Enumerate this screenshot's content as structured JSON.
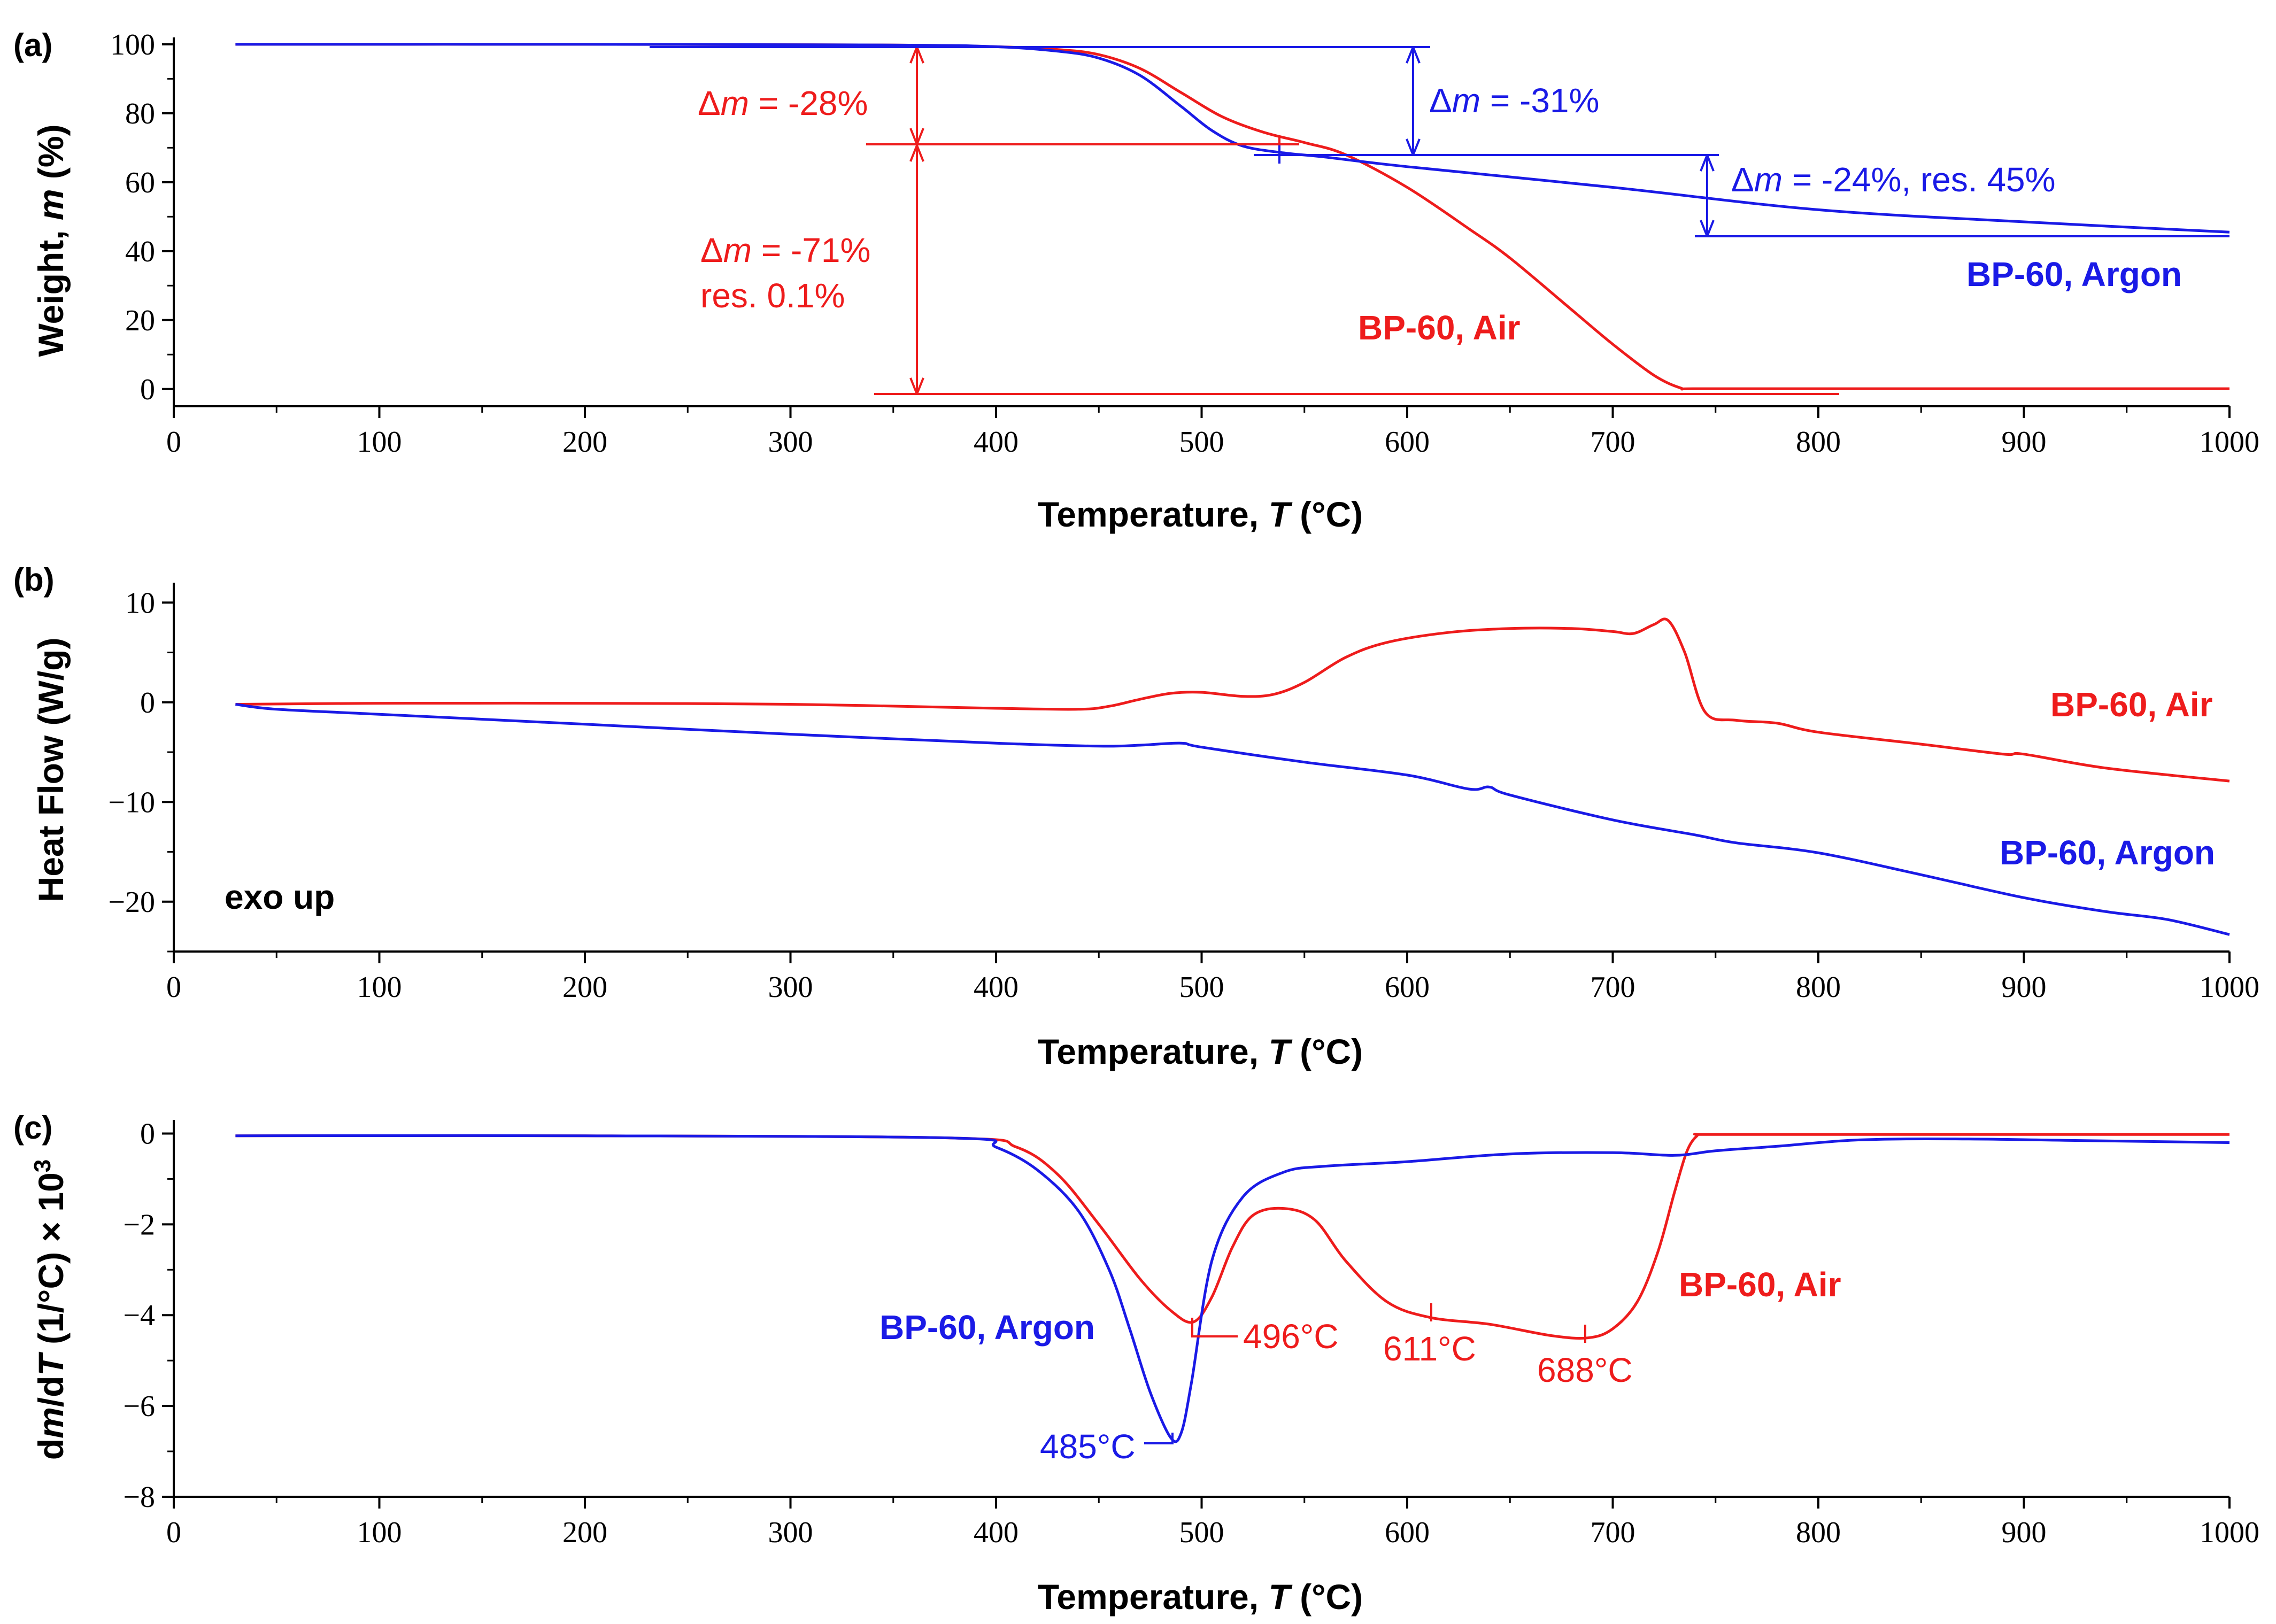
{
  "colors": {
    "air": "#ee1c1c",
    "argon": "#1a1ae6",
    "axis": "#000000"
  },
  "chart_data": [
    {
      "type": "line",
      "panel": "(a)",
      "xlabel": "Temperature, T (°C)",
      "ylabel": "Weight, m (%)",
      "xlim": [
        0,
        1000
      ],
      "ylim": [
        -5,
        102
      ],
      "xticks": [
        0,
        100,
        200,
        300,
        400,
        500,
        600,
        700,
        800,
        900,
        1000
      ],
      "yticks": [
        0,
        20,
        40,
        60,
        80,
        100
      ],
      "grid": false,
      "series": [
        {
          "name": "BP-60, Air",
          "color": "#ee1c1c",
          "x": [
            30,
            200,
            350,
            400,
            430,
            450,
            470,
            490,
            510,
            530,
            550,
            570,
            600,
            630,
            650,
            680,
            700,
            720,
            733,
            740,
            800,
            900,
            1000
          ],
          "y": [
            100,
            100,
            99.8,
            99.3,
            98.5,
            97,
            93,
            86,
            79,
            74.5,
            71.5,
            68,
            58.5,
            46.5,
            38,
            23,
            13,
            4,
            0.3,
            0.1,
            0.1,
            0.1,
            0.1
          ]
        },
        {
          "name": "BP-60, Argon",
          "color": "#1a1ae6",
          "x": [
            30,
            200,
            350,
            400,
            430,
            450,
            470,
            490,
            505,
            520,
            540,
            560,
            600,
            700,
            800,
            900,
            1000
          ],
          "y": [
            100,
            100,
            99.8,
            99.3,
            98,
            96,
            91,
            82,
            75,
            70.5,
            68.5,
            67.3,
            64.5,
            58.5,
            52,
            48.5,
            45.5
          ]
        }
      ],
      "annotations": {
        "air_step1": "-28%",
        "air_step2_line1": "-71%",
        "air_step2_line2": "res. 0.1%",
        "argon_step1": "-31%",
        "argon_step2": "-24%, res. 45%",
        "air_label": "BP-60, Air",
        "argon_label": "BP-60, Argon",
        "delta_m_prefix": "Δ",
        "m_symbol": "m",
        "eq": " = "
      }
    },
    {
      "type": "line",
      "panel": "(b)",
      "xlabel": "Temperature, T (°C)",
      "ylabel": "Heat Flow (W/g)",
      "xlim": [
        0,
        1000
      ],
      "ylim": [
        -25,
        12
      ],
      "xticks": [
        0,
        100,
        200,
        300,
        400,
        500,
        600,
        700,
        800,
        900,
        1000
      ],
      "yticks": [
        -20,
        -10,
        0,
        10
      ],
      "grid": false,
      "note": "exo up",
      "series": [
        {
          "name": "BP-60, Air",
          "color": "#ee1c1c",
          "x": [
            30,
            100,
            200,
            300,
            400,
            440,
            455,
            470,
            485,
            500,
            520,
            535,
            550,
            570,
            590,
            620,
            650,
            680,
            700,
            710,
            720,
            727,
            735,
            745,
            760,
            780,
            800,
            850,
            890,
            900,
            940,
            1000
          ],
          "y": [
            -0.2,
            -0.1,
            -0.1,
            -0.2,
            -0.6,
            -0.7,
            -0.4,
            0.3,
            0.9,
            1.0,
            0.6,
            0.8,
            2.0,
            4.5,
            6.0,
            7.0,
            7.4,
            7.4,
            7.1,
            6.9,
            7.8,
            8.2,
            5.0,
            -1.0,
            -1.8,
            -2.1,
            -3.0,
            -4.2,
            -5.2,
            -5.2,
            -6.6,
            -7.9
          ]
        },
        {
          "name": "BP-60, Argon",
          "color": "#1a1ae6",
          "x": [
            30,
            50,
            100,
            200,
            300,
            400,
            450,
            470,
            490,
            500,
            550,
            600,
            630,
            640,
            650,
            700,
            740,
            760,
            800,
            850,
            900,
            940,
            970,
            1000
          ],
          "y": [
            -0.2,
            -0.7,
            -1.2,
            -2.2,
            -3.2,
            -4.1,
            -4.4,
            -4.3,
            -4.1,
            -4.5,
            -6.0,
            -7.3,
            -8.7,
            -8.5,
            -9.3,
            -11.8,
            -13.3,
            -14.1,
            -15.1,
            -17.3,
            -19.6,
            -21.0,
            -21.8,
            -23.3
          ]
        }
      ],
      "annotations": {
        "air_label": "BP-60, Air",
        "argon_label": "BP-60, Argon"
      }
    },
    {
      "type": "line",
      "panel": "(c)",
      "xlabel": "Temperature, T (°C)",
      "ylabel": "dm/dT (1/°C) × 10³",
      "xlim": [
        0,
        1000
      ],
      "ylim": [
        -8,
        0.3
      ],
      "xticks": [
        0,
        100,
        200,
        300,
        400,
        500,
        600,
        700,
        800,
        900,
        1000
      ],
      "yticks": [
        -8,
        -6,
        -4,
        -2,
        0
      ],
      "grid": false,
      "series": [
        {
          "name": "BP-60, Air",
          "color": "#ee1c1c",
          "x": [
            30,
            200,
            380,
            410,
            430,
            450,
            470,
            485,
            496,
            505,
            515,
            525,
            540,
            555,
            570,
            590,
            611,
            640,
            670,
            688,
            700,
            712,
            722,
            730,
            736,
            741,
            745,
            800,
            900,
            1000
          ],
          "y": [
            -0.05,
            -0.05,
            -0.1,
            -0.3,
            -0.9,
            -2.0,
            -3.2,
            -3.9,
            -4.15,
            -3.6,
            -2.5,
            -1.8,
            -1.65,
            -1.9,
            -2.8,
            -3.7,
            -4.05,
            -4.2,
            -4.45,
            -4.5,
            -4.3,
            -3.7,
            -2.6,
            -1.3,
            -0.4,
            -0.05,
            -0.02,
            -0.02,
            -0.02,
            -0.02
          ]
        },
        {
          "name": "BP-60, Argon",
          "color": "#1a1ae6",
          "x": [
            30,
            200,
            380,
            400,
            420,
            440,
            455,
            465,
            475,
            485,
            490,
            495,
            505,
            520,
            540,
            560,
            600,
            650,
            700,
            730,
            750,
            780,
            820,
            870,
            920,
            1000
          ],
          "y": [
            -0.05,
            -0.05,
            -0.1,
            -0.3,
            -0.8,
            -1.7,
            -3.0,
            -4.3,
            -5.7,
            -6.7,
            -6.6,
            -5.5,
            -2.8,
            -1.4,
            -0.85,
            -0.72,
            -0.62,
            -0.45,
            -0.42,
            -0.48,
            -0.38,
            -0.28,
            -0.14,
            -0.12,
            -0.15,
            -0.2
          ]
        }
      ],
      "annotations": {
        "peak_argon": "485°C",
        "peak_air_1": "496°C",
        "peak_air_2": "611°C",
        "peak_air_3": "688°C",
        "air_label": "BP-60, Air",
        "argon_label": "BP-60, Argon"
      }
    }
  ]
}
